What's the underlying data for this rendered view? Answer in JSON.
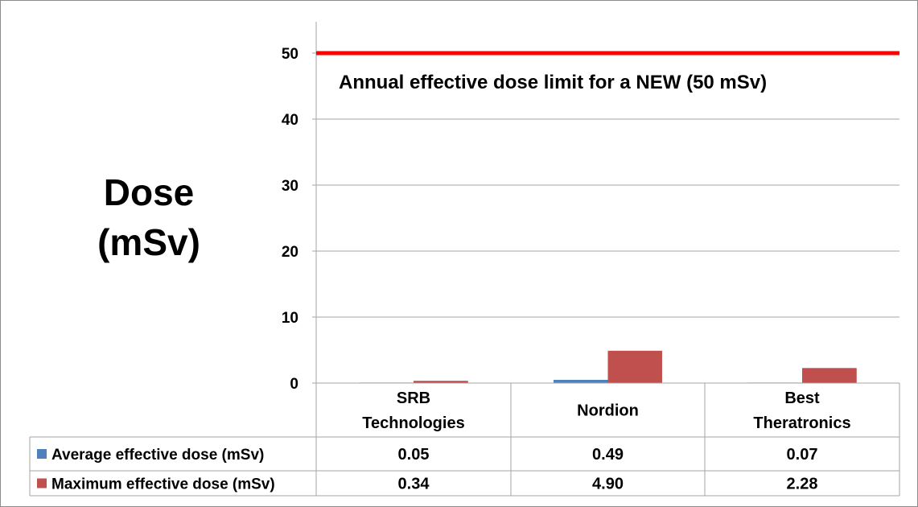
{
  "chart_data": {
    "type": "bar",
    "categories": [
      [
        "SRB",
        "Technologies"
      ],
      [
        "Nordion"
      ],
      [
        "Best",
        "Theratronics"
      ]
    ],
    "series": [
      {
        "name": "Average effective dose  (mSv)",
        "color": "#4f81bd",
        "values": [
          0.05,
          0.49,
          0.07
        ],
        "labels": [
          "0.05",
          "0.49",
          "0.07"
        ]
      },
      {
        "name": "Maximum effective dose (mSv)",
        "color": "#c0504d",
        "values": [
          0.34,
          4.9,
          2.28
        ],
        "labels": [
          "0.34",
          "4.90",
          "2.28"
        ]
      }
    ],
    "ylabel": [
      "Dose",
      "(mSv)"
    ],
    "ylim": [
      0,
      55
    ],
    "yticks": [
      0,
      10,
      20,
      30,
      40,
      50
    ],
    "grid": true,
    "legend_placement": "data-table",
    "reference_line": {
      "value": 50,
      "color": "#ff0000",
      "label": "Annual effective dose limit for a NEW  (50 mSv)"
    }
  }
}
